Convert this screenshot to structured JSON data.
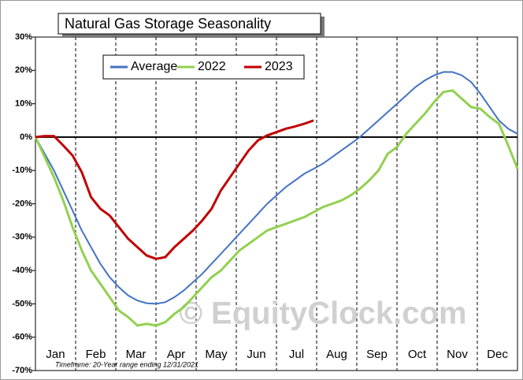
{
  "chart_data": {
    "type": "line",
    "title": "Natural Gas Storage Seasonality",
    "watermark": "© EquityClock.com",
    "footnote": "Timeframe: 20-Year range ending 12/31/2021",
    "months": [
      "Jan",
      "Feb",
      "Mar",
      "Apr",
      "May",
      "Jun",
      "Jul",
      "Aug",
      "Sep",
      "Oct",
      "Nov",
      "Dec"
    ],
    "ylim": [
      -70,
      30
    ],
    "yticks": [
      {
        "value": 30,
        "label": "30%"
      },
      {
        "value": 20,
        "label": "20%"
      },
      {
        "value": 10,
        "label": "10%"
      },
      {
        "value": 0,
        "label": "0%"
      },
      {
        "value": -10,
        "label": "-10%"
      },
      {
        "value": -20,
        "label": "-20%"
      },
      {
        "value": -30,
        "label": "-30%"
      },
      {
        "value": -40,
        "label": "-40%"
      },
      {
        "value": -50,
        "label": "-50%"
      },
      {
        "value": -60,
        "label": "-60%"
      },
      {
        "value": -70,
        "label": "-70%"
      }
    ],
    "legend": "top-left",
    "series": [
      {
        "name": "Average",
        "color": "#4472c4",
        "values": [
          0,
          -5,
          -10,
          -16,
          -22,
          -28,
          -33,
          -38,
          -42,
          -45,
          -47.5,
          -49,
          -49.8,
          -50,
          -49.5,
          -48,
          -46,
          -43.5,
          -41,
          -38,
          -35,
          -32,
          -29,
          -26,
          -23,
          -20,
          -17.5,
          -15,
          -13,
          -11,
          -9.5,
          -8,
          -6,
          -4,
          -2,
          0,
          2.5,
          5,
          7.5,
          10,
          12.5,
          15,
          17,
          18.5,
          19.5,
          19.5,
          18.5,
          16.5,
          13,
          9,
          5,
          2.5,
          1
        ]
      },
      {
        "name": "2022",
        "color": "#92d050",
        "values": [
          0,
          -6,
          -12,
          -19,
          -27,
          -34,
          -40,
          -44,
          -48,
          -52,
          -54,
          -56.5,
          -56,
          -56.5,
          -55.5,
          -53,
          -51,
          -48,
          -45,
          -42,
          -40,
          -37,
          -34,
          -32,
          -30,
          -28,
          -27,
          -26,
          -25,
          -24,
          -22.5,
          -21,
          -20,
          -19,
          -17.5,
          -15.5,
          -13,
          -10,
          -5,
          -3,
          1,
          4,
          7,
          10.5,
          13.5,
          14,
          11.5,
          9,
          8.5,
          6,
          4,
          -2.5,
          -9.5
        ]
      },
      {
        "name": "2023",
        "color": "#c00000",
        "values": [
          0,
          0.3,
          0.3,
          -2.5,
          -5.5,
          -10.5,
          -18,
          -21.5,
          -23.5,
          -27,
          -30.5,
          -33,
          -35.5,
          -36.5,
          -36,
          -33,
          -30.5,
          -28,
          -25,
          -21.5,
          -16,
          -12,
          -8,
          -4,
          -1,
          0.5,
          1.5,
          2.5,
          3.2,
          4,
          5
        ]
      }
    ]
  }
}
